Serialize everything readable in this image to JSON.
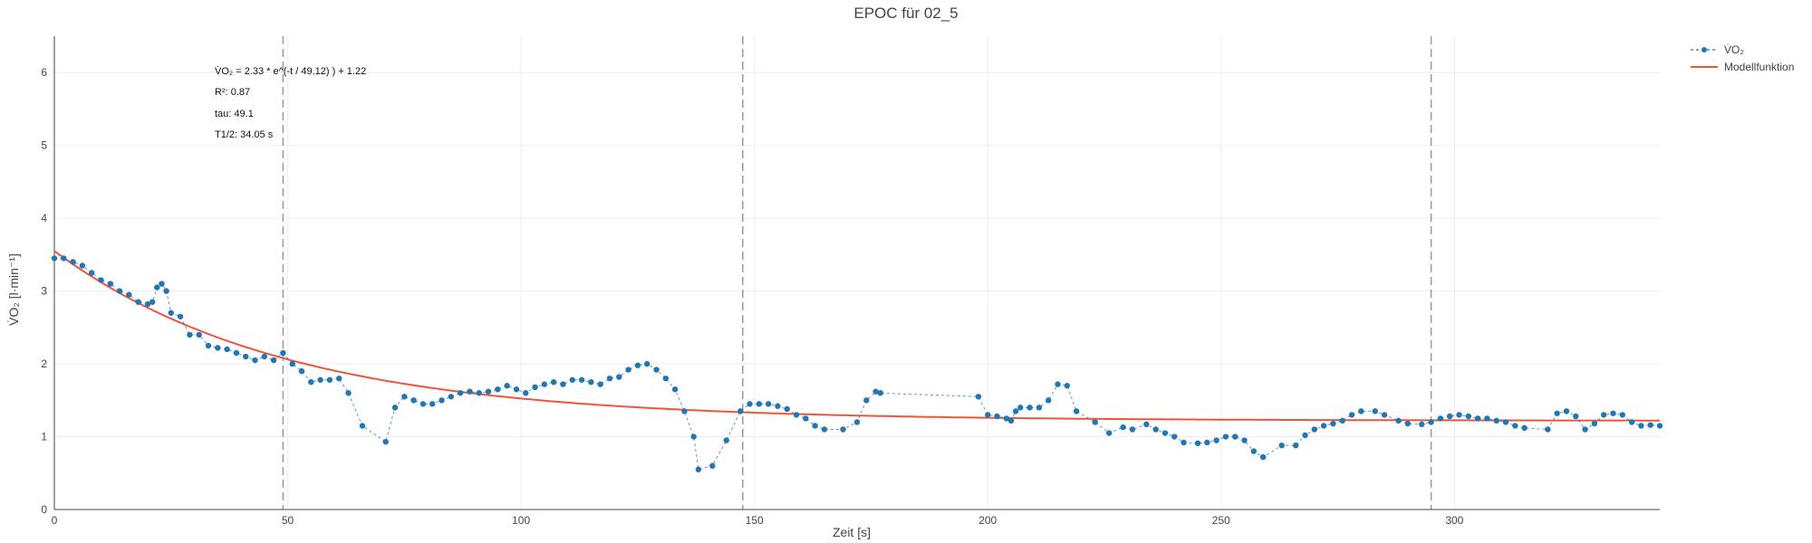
{
  "chart_data": {
    "type": "line",
    "title": "EPOC für 02_5",
    "xlabel": "Zeit [s]",
    "ylabel": "V̇O₂ [l·min⁻¹]",
    "xlim": [
      0,
      344
    ],
    "ylim": [
      0,
      6.5
    ],
    "xticks": [
      0,
      50,
      100,
      150,
      200,
      250,
      300
    ],
    "yticks": [
      0,
      1,
      2,
      3,
      4,
      5,
      6
    ],
    "grid": true,
    "legend_position": "top-right",
    "colors": {
      "data": "#1f77b4",
      "model": "#ef553b",
      "vline": "#999999",
      "grid": "#eeeeee",
      "axis": "#444444"
    },
    "vlines": [
      49,
      147.5,
      295
    ],
    "annotation": [
      "V̇O₂ = 2.33 * e^(-t / 49.12) ) + 1.22",
      "R²: 0.87",
      "tau: 49.1",
      "T1/2: 34.05 s"
    ],
    "model": {
      "a": 2.33,
      "tau": 49.12,
      "c": 1.22
    },
    "series": [
      {
        "name": "V̇O₂",
        "style": "markers+dashed-line",
        "x": [
          0,
          2,
          4,
          6,
          8,
          10,
          12,
          14,
          16,
          18,
          20,
          21,
          22,
          23,
          24,
          25,
          27,
          29,
          31,
          33,
          35,
          37,
          39,
          41,
          43,
          45,
          47,
          49,
          51,
          53,
          55,
          57,
          59,
          61,
          63,
          66,
          71,
          73,
          75,
          77,
          79,
          81,
          83,
          85,
          87,
          89,
          91,
          93,
          95,
          97,
          99,
          101,
          103,
          105,
          107,
          109,
          111,
          113,
          115,
          117,
          119,
          121,
          123,
          125,
          127,
          129,
          131,
          133,
          135,
          137,
          138,
          141,
          144,
          147,
          149,
          151,
          153,
          155,
          157,
          159,
          161,
          163,
          165,
          169,
          172,
          174,
          176,
          177,
          198,
          200,
          202,
          204,
          205,
          206,
          207,
          209,
          211,
          213,
          215,
          217,
          219,
          223,
          226,
          229,
          231,
          234,
          236,
          238,
          240,
          242,
          245,
          247,
          249,
          251,
          253,
          255,
          257,
          259,
          263,
          266,
          268,
          270,
          272,
          274,
          276,
          278,
          280,
          283,
          285,
          288,
          290,
          293,
          295,
          297,
          299,
          301,
          303,
          305,
          307,
          309,
          311,
          313,
          315,
          320,
          322,
          324,
          326,
          328,
          330,
          332,
          334,
          336,
          338,
          340,
          342,
          344
        ],
        "y": [
          3.45,
          3.45,
          3.4,
          3.35,
          3.25,
          3.15,
          3.1,
          3.0,
          2.95,
          2.85,
          2.82,
          2.85,
          3.05,
          3.1,
          3.0,
          2.7,
          2.65,
          2.4,
          2.4,
          2.25,
          2.22,
          2.2,
          2.15,
          2.1,
          2.05,
          2.1,
          2.05,
          2.15,
          2.0,
          1.9,
          1.75,
          1.78,
          1.78,
          1.8,
          1.6,
          1.15,
          0.93,
          1.4,
          1.55,
          1.5,
          1.45,
          1.45,
          1.5,
          1.55,
          1.6,
          1.62,
          1.6,
          1.62,
          1.65,
          1.7,
          1.65,
          1.6,
          1.68,
          1.72,
          1.75,
          1.72,
          1.78,
          1.78,
          1.75,
          1.72,
          1.8,
          1.82,
          1.92,
          1.98,
          2.0,
          1.92,
          1.8,
          1.65,
          1.35,
          1.0,
          0.55,
          0.6,
          0.95,
          1.35,
          1.45,
          1.45,
          1.45,
          1.42,
          1.38,
          1.3,
          1.25,
          1.15,
          1.1,
          1.1,
          1.2,
          1.5,
          1.62,
          1.6,
          1.55,
          1.3,
          1.28,
          1.25,
          1.22,
          1.35,
          1.4,
          1.4,
          1.4,
          1.5,
          1.72,
          1.7,
          1.35,
          1.2,
          1.05,
          1.13,
          1.1,
          1.17,
          1.1,
          1.05,
          1.0,
          0.92,
          0.91,
          0.92,
          0.95,
          1.0,
          1.0,
          0.95,
          0.8,
          0.72,
          0.88,
          0.88,
          1.02,
          1.1,
          1.15,
          1.18,
          1.22,
          1.3,
          1.35,
          1.35,
          1.3,
          1.22,
          1.18,
          1.17,
          1.2,
          1.25,
          1.28,
          1.3,
          1.28,
          1.25,
          1.25,
          1.22,
          1.2,
          1.15,
          1.12,
          1.1,
          1.32,
          1.35,
          1.28,
          1.1,
          1.18,
          1.3,
          1.32,
          1.3,
          1.2,
          1.15,
          1.16,
          1.15
        ]
      },
      {
        "name": "Modellfunktion",
        "style": "solid-line"
      }
    ]
  }
}
